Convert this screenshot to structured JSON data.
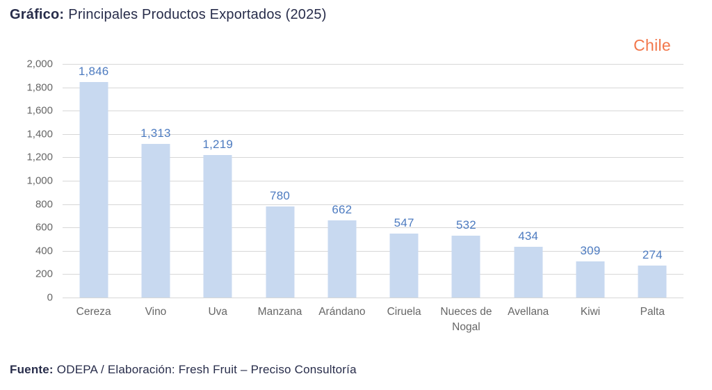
{
  "header": {
    "title_label": "Gráfico:",
    "title_text": "Principales Productos Exportados (2025)"
  },
  "region_label": "Chile",
  "chart_data": {
    "type": "bar",
    "title": "Principales Productos Exportados (2025)",
    "categories": [
      "Cereza",
      "Vino",
      "Uva",
      "Manzana",
      "Arándano",
      "Ciruela",
      "Nueces de Nogal",
      "Avellana",
      "Kiwi",
      "Palta"
    ],
    "values": [
      1846,
      1313,
      1219,
      780,
      662,
      547,
      532,
      434,
      309,
      274
    ],
    "value_labels": [
      "1,846",
      "1,313",
      "1,219",
      "780",
      "662",
      "547",
      "532",
      "434",
      "309",
      "274"
    ],
    "xlabel": "",
    "ylabel": "",
    "ylim": [
      0,
      2000
    ],
    "ytick_step": 200,
    "ytick_labels": [
      "0",
      "200",
      "400",
      "600",
      "800",
      "1,000",
      "1,200",
      "1,400",
      "1,600",
      "1,800",
      "2,000"
    ],
    "grid": true,
    "legend": "none",
    "colors": {
      "bar_fill": "#c8d9f0",
      "value_label": "#4d7bc0",
      "axis_label": "#666666",
      "gridline": "#d7d7d7"
    }
  },
  "footer": {
    "label": "Fuente:",
    "text": "ODEPA / Elaboración: Fresh Fruit – Preciso Consultoría"
  },
  "colors": {
    "title_navy": "#272c4a",
    "accent_orange": "#f2774b"
  }
}
